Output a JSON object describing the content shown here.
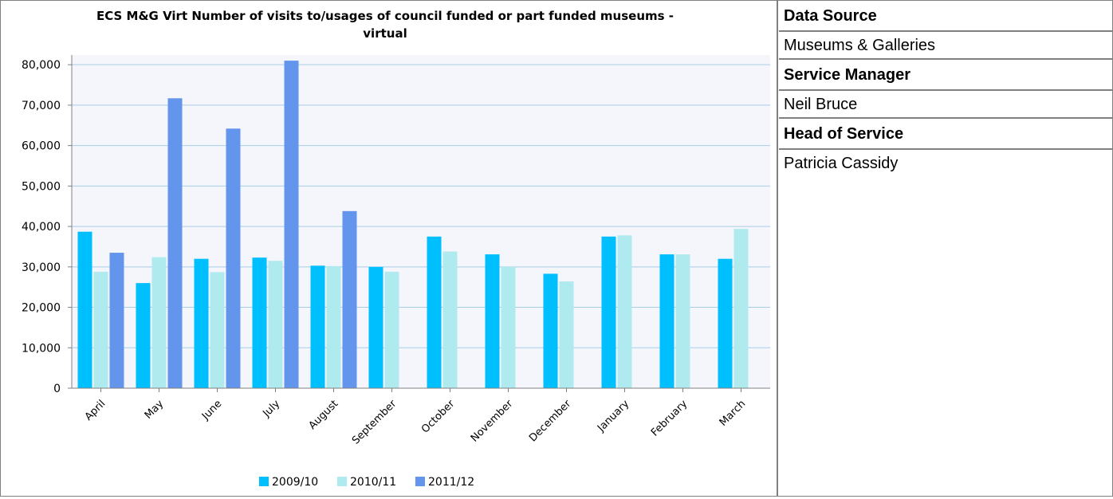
{
  "chart_data": {
    "type": "bar",
    "title": "ECS M&G Virt Number of visits to/usages of council funded or part funded museums - virtual",
    "title_lines": [
      "ECS M&G Virt Number of visits to/usages of council funded or part funded museums -",
      "virtual"
    ],
    "categories": [
      "April",
      "May",
      "June",
      "July",
      "August",
      "September",
      "October",
      "November",
      "December",
      "January",
      "February",
      "March"
    ],
    "series": [
      {
        "name": "2009/10",
        "color": "#00bfff",
        "values": [
          38700,
          26000,
          32000,
          32300,
          30300,
          30000,
          37500,
          33100,
          28300,
          37500,
          33100,
          32000
        ]
      },
      {
        "name": "2010/11",
        "color": "#aeeaee",
        "values": [
          28800,
          32400,
          28700,
          31500,
          30200,
          28800,
          33800,
          30000,
          26400,
          37800,
          33100,
          39400
        ]
      },
      {
        "name": "2011/12",
        "color": "#6495ed",
        "values": [
          33500,
          71700,
          64200,
          81000,
          43800,
          null,
          null,
          null,
          null,
          null,
          null,
          null
        ]
      }
    ],
    "ylim": [
      0,
      80000
    ],
    "yticks": [
      "0",
      "10,000",
      "20,000",
      "30,000",
      "40,000",
      "50,000",
      "60,000",
      "70,000",
      "80,000"
    ],
    "ytick_values": [
      0,
      10000,
      20000,
      30000,
      40000,
      50000,
      60000,
      70000,
      80000
    ],
    "grid": true,
    "legend_placement": "bottom"
  },
  "info": {
    "data_source_label": "Data Source",
    "data_source_value": "Museums & Galleries",
    "service_manager_label": "Service Manager",
    "service_manager_value": "Neil Bruce",
    "head_of_service_label": "Head of Service",
    "head_of_service_value": "Patricia Cassidy"
  }
}
